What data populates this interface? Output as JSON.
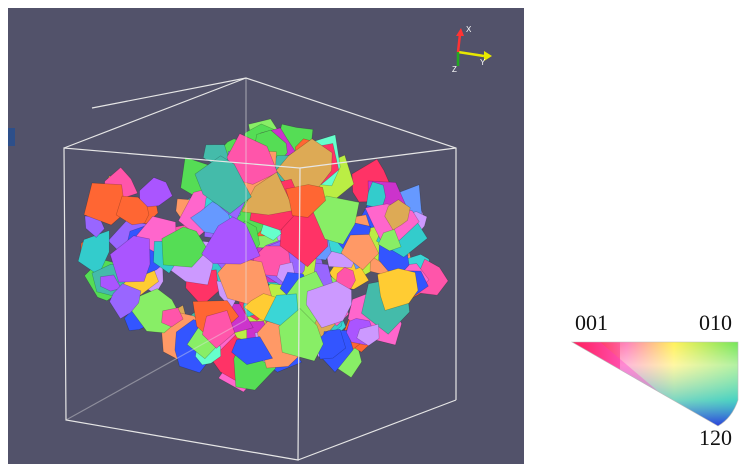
{
  "legend": {
    "corner_a": "001",
    "corner_b": "010",
    "corner_c": "120",
    "colors": {
      "corner_a": "#ff0000",
      "corner_b": "#33dd33",
      "corner_c": "#2222dd"
    }
  },
  "axes_gizmo": {
    "x_label": "X",
    "y_label": "Y",
    "z_label": "Z",
    "colors": {
      "x": "#ff3333",
      "y": "#e8e800",
      "z": "#22aa22"
    }
  },
  "viewport": {
    "background": "#52526a",
    "bounding_box_color": "#e6e6e6"
  }
}
